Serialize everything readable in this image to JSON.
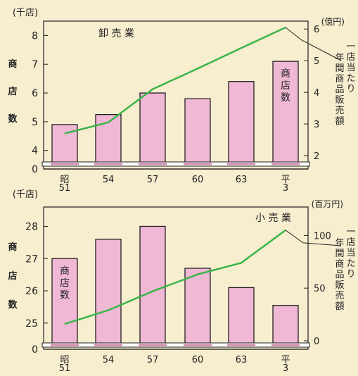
{
  "chart_data": [
    {
      "type": "bar",
      "title": "卸売業",
      "categories": [
        "昭\n51",
        "54",
        "57",
        "60",
        "63",
        "平\n3"
      ],
      "left_unit": "(千店)",
      "right_unit": "(億円)",
      "left_axis_label": "商店数",
      "right_axis_label": "一店当たり年間商品販売額",
      "bar_label": "商店数",
      "left_ticks": [
        4,
        5,
        6,
        7,
        8
      ],
      "left_zero": "0",
      "right_ticks": [
        2,
        3,
        4,
        5,
        6
      ],
      "ylim_left": [
        3.6,
        8.5
      ],
      "ylim_right": [
        1.8,
        6.25
      ],
      "series": [
        {
          "name": "商店数",
          "axis": "left",
          "type": "bar",
          "values": [
            4.9,
            5.25,
            6.0,
            5.8,
            6.4,
            7.1
          ]
        },
        {
          "name": "一店当たり年間商品販売額",
          "axis": "right",
          "type": "line",
          "values": [
            2.7,
            3.05,
            4.1,
            4.75,
            5.4,
            6.05
          ]
        }
      ]
    },
    {
      "type": "bar",
      "title": "小売業",
      "categories": [
        "昭\n51",
        "54",
        "57",
        "60",
        "63",
        "平\n3"
      ],
      "left_unit": "(千店)",
      "right_unit": "(百万円)",
      "left_axis_label": "商店数",
      "right_axis_label": "一店当たり年間商品販売額",
      "bar_label": "商店数",
      "left_ticks": [
        25,
        26,
        27,
        28
      ],
      "left_zero": "0",
      "right_ticks": [
        0,
        50,
        100
      ],
      "ylim_left": [
        24.45,
        28.6
      ],
      "ylim_right": [
        0,
        127
      ],
      "series": [
        {
          "name": "商店数",
          "axis": "left",
          "type": "bar",
          "values": [
            27.0,
            27.6,
            28.0,
            26.7,
            26.1,
            25.55
          ]
        },
        {
          "name": "一店当たり年間商品販売額",
          "axis": "right",
          "type": "line",
          "values": [
            16,
            29,
            47,
            63,
            74,
            105
          ]
        }
      ]
    }
  ],
  "colors": {
    "background": "#f7edcf",
    "bar_fill": "#f0b8d4",
    "line": "#3bb54a",
    "axis": "#222222",
    "strip_pink": "#d48cb0"
  }
}
